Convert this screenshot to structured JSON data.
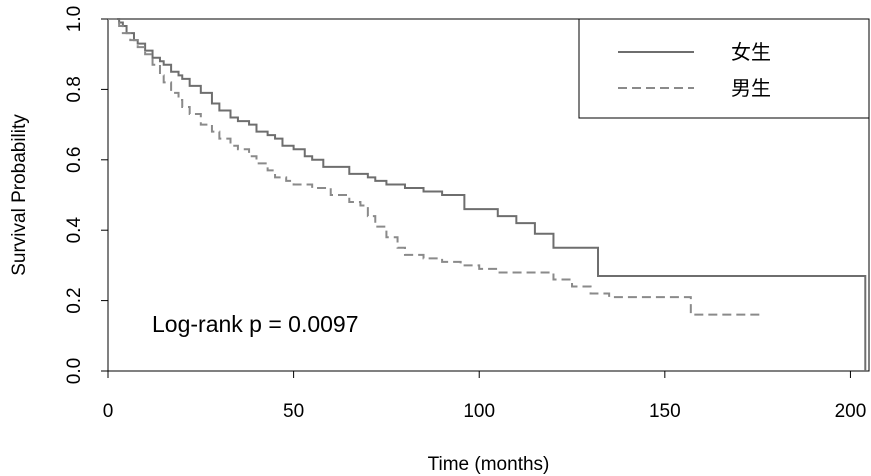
{
  "chart_data": {
    "type": "line",
    "title": "",
    "xlabel": "Time (months)",
    "ylabel": "Survival Probability",
    "xlim": [
      0,
      205
    ],
    "ylim": [
      0,
      1.0
    ],
    "x_ticks": [
      0,
      50,
      100,
      150,
      200
    ],
    "y_ticks": [
      0.0,
      0.2,
      0.4,
      0.6,
      0.8,
      1.0
    ],
    "x_tick_labels": [
      "0",
      "50",
      "100",
      "150",
      "200"
    ],
    "y_tick_labels": [
      "0.0",
      "0.2",
      "0.4",
      "0.6",
      "0.8",
      "1.0"
    ],
    "grid": false,
    "legend_position": "top-right",
    "annotation": "Log-rank p = 0.0097",
    "series": [
      {
        "name": "女生",
        "line_style": "solid",
        "color": "#6e6e6e",
        "x": [
          0,
          3,
          4,
          5,
          7,
          8,
          10,
          12,
          14,
          15,
          17,
          19,
          20,
          22,
          25,
          28,
          30,
          33,
          35,
          38,
          40,
          43,
          45,
          47,
          50,
          53,
          55,
          58,
          60,
          65,
          70,
          72,
          75,
          80,
          85,
          90,
          95,
          96,
          100,
          105,
          108,
          110,
          115,
          120,
          125,
          130,
          132,
          135,
          140,
          150,
          160,
          170,
          180,
          200,
          204,
          204
        ],
        "y": [
          1.0,
          0.99,
          0.98,
          0.96,
          0.94,
          0.93,
          0.91,
          0.89,
          0.88,
          0.87,
          0.85,
          0.84,
          0.83,
          0.81,
          0.79,
          0.76,
          0.74,
          0.72,
          0.71,
          0.7,
          0.68,
          0.67,
          0.66,
          0.64,
          0.63,
          0.61,
          0.6,
          0.58,
          0.58,
          0.56,
          0.55,
          0.54,
          0.53,
          0.52,
          0.51,
          0.5,
          0.5,
          0.46,
          0.46,
          0.44,
          0.44,
          0.42,
          0.39,
          0.35,
          0.35,
          0.35,
          0.27,
          0.27,
          0.27,
          0.27,
          0.27,
          0.27,
          0.27,
          0.27,
          0.27,
          0.0
        ]
      },
      {
        "name": "男生",
        "line_style": "dashed",
        "color": "#8a8a8a",
        "x": [
          0,
          3,
          4,
          6,
          8,
          10,
          12,
          14,
          15,
          17,
          19,
          20,
          22,
          25,
          28,
          30,
          33,
          35,
          38,
          40,
          43,
          45,
          48,
          50,
          55,
          60,
          65,
          68,
          70,
          72,
          75,
          78,
          80,
          85,
          90,
          95,
          100,
          105,
          110,
          115,
          120,
          125,
          130,
          135,
          140,
          150,
          157,
          160,
          170,
          176
        ],
        "y": [
          1.0,
          0.98,
          0.96,
          0.94,
          0.92,
          0.9,
          0.87,
          0.84,
          0.82,
          0.79,
          0.77,
          0.75,
          0.73,
          0.7,
          0.68,
          0.66,
          0.64,
          0.63,
          0.61,
          0.59,
          0.57,
          0.55,
          0.54,
          0.53,
          0.52,
          0.5,
          0.48,
          0.47,
          0.44,
          0.41,
          0.38,
          0.35,
          0.33,
          0.32,
          0.31,
          0.3,
          0.29,
          0.28,
          0.28,
          0.28,
          0.26,
          0.24,
          0.22,
          0.21,
          0.21,
          0.21,
          0.16,
          0.16,
          0.16,
          0.16
        ]
      }
    ]
  }
}
